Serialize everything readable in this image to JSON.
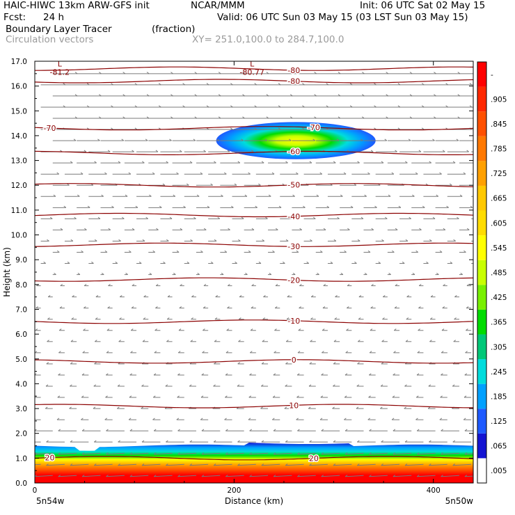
{
  "header": {
    "title_left": "HAIC-HIWC 13km ARW-GFS init",
    "title_center": "NCAR/MMM",
    "init_time": "Init: 06 UTC Sat 02 May 15",
    "fcst_label": "Fcst:",
    "fcst_value": "24 h",
    "valid_time": "Valid: 06 UTC Sun 03 May 15 (03 LST Sun 03 May 15)",
    "field_name": "Boundary Layer Tracer",
    "field_units": "(fraction)",
    "vector_label": "Circulation vectors",
    "xy_label": "XY= 251.0,100.0 to 284.7,100.0"
  },
  "chart_data": {
    "type": "heatmap",
    "xlabel": "Distance (km)",
    "ylabel": "Height (km)",
    "xlim": [
      0,
      440
    ],
    "ylim": [
      0,
      17
    ],
    "x_ticks": [
      {
        "value": 0,
        "label": "0"
      },
      {
        "value": 200,
        "label": "200"
      },
      {
        "value": 400,
        "label": "400"
      }
    ],
    "y_ticks": [
      {
        "value": 0,
        "label": "0.0"
      },
      {
        "value": 1,
        "label": "1.0"
      },
      {
        "value": 2,
        "label": "2.0"
      },
      {
        "value": 3,
        "label": "3.0"
      },
      {
        "value": 4,
        "label": "4.0"
      },
      {
        "value": 5,
        "label": "5.0"
      },
      {
        "value": 6,
        "label": "6.0"
      },
      {
        "value": 7,
        "label": "7.0"
      },
      {
        "value": 8,
        "label": "8.0"
      },
      {
        "value": 9,
        "label": "9.0"
      },
      {
        "value": 10,
        "label": "10.0"
      },
      {
        "value": 11,
        "label": "11.0"
      },
      {
        "value": 12,
        "label": "12.0"
      },
      {
        "value": 13,
        "label": "13.0"
      },
      {
        "value": 14,
        "label": "14.0"
      },
      {
        "value": 15,
        "label": "15.0"
      },
      {
        "value": 16,
        "label": "16.0"
      },
      {
        "value": 17,
        "label": "17.0"
      }
    ],
    "corner_labels": {
      "left": "5n54w",
      "right": "5n50w"
    },
    "colorbar": {
      "colors": [
        "#ffffff",
        "#1414d2",
        "#1e5aff",
        "#00a0ff",
        "#00dcdc",
        "#00c878",
        "#00dc00",
        "#78f000",
        "#c8ff00",
        "#ffff00",
        "#ffdc00",
        "#ffc800",
        "#ffa000",
        "#ff7800",
        "#ff5000",
        "#ff2800",
        "#ff0000"
      ],
      "labels": [
        ".005",
        ".065",
        ".125",
        ".185",
        ".245",
        ".305",
        ".365",
        ".425",
        ".485",
        ".545",
        ".605",
        ".665",
        ".725",
        ".785",
        ".845",
        ".905",
        "-"
      ]
    },
    "temperature_contours": [
      {
        "label": "20",
        "height_km": 1.0,
        "label_positions_km": [
          15,
          280
        ]
      },
      {
        "label": "10",
        "height_km": 3.1
      },
      {
        "label": "0",
        "height_km": 4.9
      },
      {
        "label": "-10",
        "height_km": 6.5
      },
      {
        "label": "-20",
        "height_km": 8.2
      },
      {
        "label": "-30",
        "height_km": 9.6
      },
      {
        "label": "-40",
        "height_km": 10.8
      },
      {
        "label": "-50",
        "height_km": 12.0
      },
      {
        "label": "-60",
        "height_km": 13.3
      },
      {
        "label": "-70",
        "height_km": 14.3,
        "label_positions_km": [
          15,
          280
        ]
      },
      {
        "label": "-80",
        "height_km": 16.2
      },
      {
        "label": "-80",
        "height_km": 16.7
      }
    ],
    "minima": [
      {
        "letter": "L",
        "value": "-81.2",
        "x_km": 25,
        "height_km": 16.7
      },
      {
        "letter": "L",
        "value": "-80.77",
        "x_km": 218,
        "height_km": 16.7
      }
    ],
    "tracer_regions": [
      {
        "name": "boundary-layer",
        "x_range_km": [
          0,
          440
        ],
        "height_range_km": [
          0,
          1.5
        ],
        "max_value": 1.0
      },
      {
        "name": "upper-anomaly",
        "x_center_km": 262,
        "height_center_km": 13.8,
        "width_km": 160,
        "height_km": 1.5,
        "max_value": 0.45
      }
    ]
  }
}
